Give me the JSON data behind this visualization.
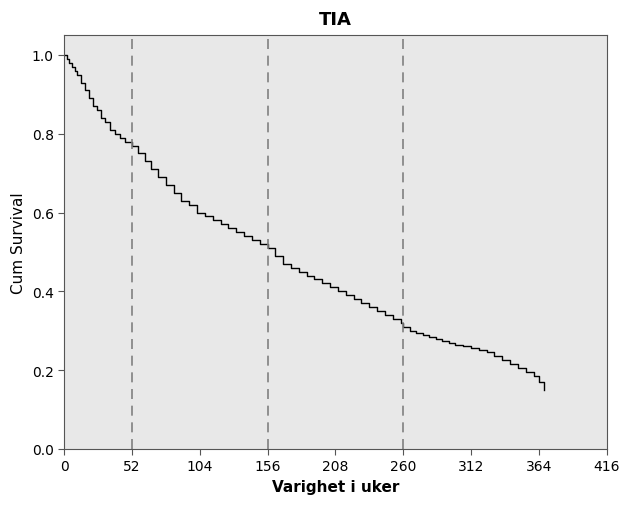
{
  "title": "TIA",
  "xlabel": "Varighet i uker",
  "ylabel": "Cum Survival",
  "xlim": [
    0,
    416
  ],
  "ylim": [
    0.0,
    1.05
  ],
  "xticks": [
    0,
    52,
    104,
    156,
    208,
    260,
    312,
    364,
    416
  ],
  "yticks": [
    0.0,
    0.2,
    0.4,
    0.6,
    0.8,
    1.0
  ],
  "vlines": [
    52,
    156,
    260
  ],
  "bg_color": "#e8e8e8",
  "line_color": "#000000",
  "vline_color": "#808080",
  "title_fontsize": 13,
  "label_fontsize": 11,
  "tick_fontsize": 10,
  "survival_curve": {
    "x": [
      0,
      2,
      4,
      6,
      8,
      10,
      13,
      16,
      19,
      22,
      25,
      28,
      31,
      35,
      39,
      43,
      47,
      52,
      57,
      62,
      67,
      72,
      78,
      84,
      90,
      96,
      102,
      108,
      114,
      120,
      126,
      132,
      138,
      144,
      150,
      156,
      162,
      168,
      174,
      180,
      186,
      192,
      198,
      204,
      210,
      216,
      222,
      228,
      234,
      240,
      246,
      252,
      258,
      260,
      265,
      270,
      275,
      280,
      285,
      290,
      295,
      300,
      306,
      312,
      318,
      324,
      330,
      336,
      342,
      348,
      354,
      360,
      364,
      368
    ],
    "y": [
      1.0,
      0.99,
      0.98,
      0.97,
      0.96,
      0.95,
      0.93,
      0.91,
      0.89,
      0.87,
      0.86,
      0.84,
      0.83,
      0.81,
      0.8,
      0.79,
      0.78,
      0.77,
      0.75,
      0.73,
      0.71,
      0.69,
      0.67,
      0.65,
      0.63,
      0.62,
      0.6,
      0.59,
      0.58,
      0.57,
      0.56,
      0.55,
      0.54,
      0.53,
      0.52,
      0.51,
      0.49,
      0.47,
      0.46,
      0.45,
      0.44,
      0.43,
      0.42,
      0.41,
      0.4,
      0.39,
      0.38,
      0.37,
      0.36,
      0.35,
      0.34,
      0.33,
      0.32,
      0.31,
      0.3,
      0.295,
      0.29,
      0.285,
      0.28,
      0.275,
      0.27,
      0.265,
      0.26,
      0.255,
      0.25,
      0.245,
      0.235,
      0.225,
      0.215,
      0.205,
      0.195,
      0.185,
      0.17,
      0.15
    ]
  }
}
